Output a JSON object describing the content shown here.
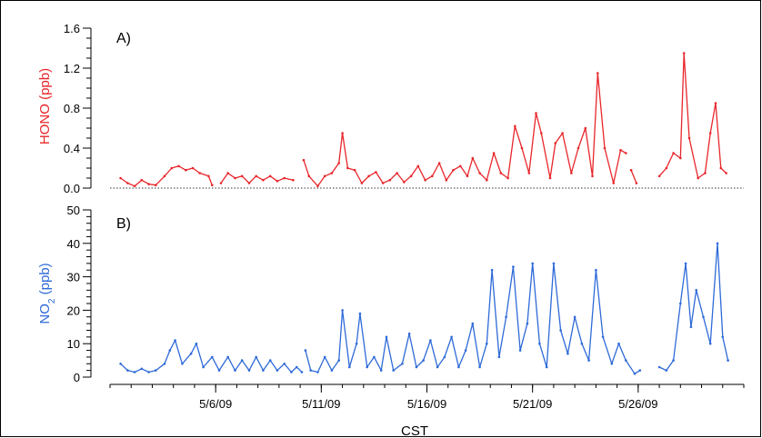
{
  "chart_data": [
    {
      "type": "line",
      "panel_label": "A)",
      "ylabel": "HONO (ppb)",
      "ylim": [
        0.0,
        1.6
      ],
      "yticks": [
        "0.0",
        "0.4",
        "0.8",
        "1.2",
        "1.6"
      ],
      "xlim": [
        "2009-05-01",
        "2009-05-31"
      ],
      "baseline_y": 0,
      "color": "#e8262b",
      "series": [
        {
          "segments": [
            [
              [
                "05-01 12:00",
                0.1
              ],
              [
                "05-01 20:00",
                0.05
              ],
              [
                "05-02 04:00",
                0.02
              ],
              [
                "05-02 12:00",
                0.08
              ],
              [
                "05-02 20:00",
                0.04
              ],
              [
                "05-03 04:00",
                0.03
              ],
              [
                "05-03 14:00",
                0.12
              ],
              [
                "05-03 22:00",
                0.2
              ],
              [
                "05-04 06:00",
                0.22
              ],
              [
                "05-04 14:00",
                0.18
              ],
              [
                "05-04 22:00",
                0.2
              ],
              [
                "05-05 06:00",
                0.15
              ],
              [
                "05-05 16:00",
                0.12
              ],
              [
                "05-05 20:00",
                0.03
              ]
            ],
            [
              [
                "05-06 06:00",
                0.05
              ],
              [
                "05-06 14:00",
                0.15
              ],
              [
                "05-06 22:00",
                0.1
              ],
              [
                "05-07 06:00",
                0.12
              ],
              [
                "05-07 14:00",
                0.05
              ],
              [
                "05-07 22:00",
                0.12
              ],
              [
                "05-08 06:00",
                0.08
              ],
              [
                "05-08 14:00",
                0.12
              ],
              [
                "05-08 22:00",
                0.07
              ],
              [
                "05-09 06:00",
                0.1
              ],
              [
                "05-09 16:00",
                0.08
              ]
            ],
            [
              [
                "05-10 04:00",
                0.28
              ],
              [
                "05-10 10:00",
                0.12
              ],
              [
                "05-10 20:00",
                0.02
              ],
              [
                "05-11 04:00",
                0.12
              ],
              [
                "05-11 12:00",
                0.15
              ],
              [
                "05-11 20:00",
                0.25
              ],
              [
                "05-12 00:00",
                0.55
              ],
              [
                "05-12 06:00",
                0.2
              ],
              [
                "05-12 14:00",
                0.18
              ],
              [
                "05-12 22:00",
                0.05
              ],
              [
                "05-13 06:00",
                0.12
              ],
              [
                "05-13 14:00",
                0.16
              ],
              [
                "05-13 22:00",
                0.05
              ],
              [
                "05-14 06:00",
                0.08
              ],
              [
                "05-14 14:00",
                0.15
              ],
              [
                "05-14 22:00",
                0.06
              ],
              [
                "05-15 06:00",
                0.12
              ],
              [
                "05-15 14:00",
                0.22
              ],
              [
                "05-15 22:00",
                0.08
              ],
              [
                "05-16 06:00",
                0.12
              ],
              [
                "05-16 14:00",
                0.25
              ],
              [
                "05-16 22:00",
                0.08
              ],
              [
                "05-17 06:00",
                0.18
              ],
              [
                "05-17 14:00",
                0.22
              ],
              [
                "05-17 22:00",
                0.12
              ],
              [
                "05-18 04:00",
                0.3
              ],
              [
                "05-18 12:00",
                0.15
              ],
              [
                "05-18 20:00",
                0.08
              ],
              [
                "05-19 04:00",
                0.35
              ],
              [
                "05-19 12:00",
                0.15
              ],
              [
                "05-19 20:00",
                0.1
              ],
              [
                "05-20 04:00",
                0.62
              ],
              [
                "05-20 12:00",
                0.4
              ],
              [
                "05-20 20:00",
                0.15
              ],
              [
                "05-21 04:00",
                0.75
              ],
              [
                "05-21 10:00",
                0.55
              ],
              [
                "05-21 20:00",
                0.1
              ],
              [
                "05-22 02:00",
                0.45
              ],
              [
                "05-22 10:00",
                0.55
              ],
              [
                "05-22 20:00",
                0.15
              ],
              [
                "05-23 04:00",
                0.4
              ],
              [
                "05-23 12:00",
                0.6
              ],
              [
                "05-23 20:00",
                0.12
              ],
              [
                "05-24 02:00",
                1.15
              ],
              [
                "05-24 10:00",
                0.4
              ],
              [
                "05-24 20:00",
                0.05
              ],
              [
                "05-25 04:00",
                0.38
              ],
              [
                "05-25 10:00",
                0.35
              ]
            ],
            [
              [
                "05-25 16:00",
                0.18
              ],
              [
                "05-25 22:00",
                0.05
              ]
            ],
            [
              [
                "05-27 00:00",
                0.12
              ],
              [
                "05-27 08:00",
                0.2
              ],
              [
                "05-27 16:00",
                0.35
              ],
              [
                "05-28 00:00",
                0.3
              ],
              [
                "05-28 04:00",
                1.35
              ],
              [
                "05-28 10:00",
                0.5
              ],
              [
                "05-28 20:00",
                0.1
              ],
              [
                "05-29 04:00",
                0.15
              ],
              [
                "05-29 10:00",
                0.55
              ],
              [
                "05-29 16:00",
                0.85
              ],
              [
                "05-29 22:00",
                0.2
              ],
              [
                "05-30 04:00",
                0.15
              ]
            ]
          ]
        }
      ]
    },
    {
      "type": "line",
      "panel_label": "B)",
      "ylabel": "NO2 (ppb)",
      "ylim": [
        0,
        50
      ],
      "yticks": [
        "0",
        "10",
        "20",
        "30",
        "40",
        "50"
      ],
      "xlim": [
        "2009-05-01",
        "2009-05-31"
      ],
      "xticks": [
        "5/6/09",
        "5/11/09",
        "5/16/09",
        "5/21/09",
        "5/26/09"
      ],
      "xlabel": "CST",
      "color": "#2e6ad8",
      "series": [
        {
          "segments": [
            [
              [
                "05-01 12:00",
                4
              ],
              [
                "05-01 20:00",
                2
              ],
              [
                "05-02 04:00",
                1.5
              ],
              [
                "05-02 12:00",
                2.5
              ],
              [
                "05-02 20:00",
                1.5
              ],
              [
                "05-03 04:00",
                2
              ],
              [
                "05-03 14:00",
                4
              ],
              [
                "05-03 20:00",
                8
              ],
              [
                "05-04 02:00",
                11
              ],
              [
                "05-04 10:00",
                4
              ],
              [
                "05-04 20:00",
                7
              ],
              [
                "05-05 02:00",
                10
              ],
              [
                "05-05 10:00",
                3
              ],
              [
                "05-05 20:00",
                6
              ],
              [
                "05-06 04:00",
                2
              ],
              [
                "05-06 14:00",
                6
              ],
              [
                "05-06 22:00",
                2
              ],
              [
                "05-07 06:00",
                5
              ],
              [
                "05-07 14:00",
                2
              ],
              [
                "05-07 22:00",
                6
              ],
              [
                "05-08 06:00",
                2
              ],
              [
                "05-08 14:00",
                5
              ],
              [
                "05-08 22:00",
                2
              ],
              [
                "05-09 06:00",
                4
              ],
              [
                "05-09 14:00",
                1.5
              ],
              [
                "05-09 20:00",
                3
              ],
              [
                "05-10 02:00",
                1.5
              ]
            ],
            [
              [
                "05-10 06:00",
                8
              ],
              [
                "05-10 12:00",
                2
              ],
              [
                "05-10 20:00",
                1.5
              ],
              [
                "05-11 04:00",
                6
              ],
              [
                "05-11 12:00",
                2
              ],
              [
                "05-11 20:00",
                5
              ],
              [
                "05-12 00:00",
                20
              ],
              [
                "05-12 08:00",
                3
              ],
              [
                "05-12 16:00",
                10
              ],
              [
                "05-12 20:00",
                19
              ],
              [
                "05-13 04:00",
                3
              ],
              [
                "05-13 12:00",
                6
              ],
              [
                "05-13 20:00",
                2
              ],
              [
                "05-14 02:00",
                12
              ],
              [
                "05-14 10:00",
                2
              ],
              [
                "05-14 20:00",
                4
              ],
              [
                "05-15 04:00",
                13
              ],
              [
                "05-15 12:00",
                3
              ],
              [
                "05-15 20:00",
                5
              ],
              [
                "05-16 04:00",
                11
              ],
              [
                "05-16 12:00",
                3
              ],
              [
                "05-16 20:00",
                6
              ],
              [
                "05-17 04:00",
                12
              ],
              [
                "05-17 12:00",
                3
              ],
              [
                "05-17 20:00",
                8
              ],
              [
                "05-18 04:00",
                16
              ],
              [
                "05-18 12:00",
                3
              ],
              [
                "05-18 20:00",
                10
              ],
              [
                "05-19 02:00",
                32
              ],
              [
                "05-19 10:00",
                6
              ],
              [
                "05-19 18:00",
                18
              ],
              [
                "05-20 02:00",
                33
              ],
              [
                "05-20 10:00",
                8
              ],
              [
                "05-20 18:00",
                16
              ],
              [
                "05-21 00:00",
                34
              ],
              [
                "05-21 08:00",
                10
              ],
              [
                "05-21 16:00",
                3
              ],
              [
                "05-22 00:00",
                34
              ],
              [
                "05-22 08:00",
                14
              ],
              [
                "05-22 16:00",
                7
              ],
              [
                "05-23 00:00",
                18
              ],
              [
                "05-23 08:00",
                10
              ],
              [
                "05-23 16:00",
                5
              ],
              [
                "05-24 00:00",
                32
              ],
              [
                "05-24 08:00",
                12
              ],
              [
                "05-24 18:00",
                4
              ],
              [
                "05-25 02:00",
                10
              ],
              [
                "05-25 10:00",
                5
              ],
              [
                "05-25 20:00",
                1
              ],
              [
                "05-26 02:00",
                2
              ]
            ],
            [
              [
                "05-27 00:00",
                3
              ],
              [
                "05-27 08:00",
                2
              ],
              [
                "05-27 16:00",
                5
              ],
              [
                "05-28 00:00",
                22
              ],
              [
                "05-28 06:00",
                34
              ],
              [
                "05-28 12:00",
                15
              ],
              [
                "05-28 18:00",
                26
              ],
              [
                "05-29 02:00",
                18
              ],
              [
                "05-29 10:00",
                10
              ],
              [
                "05-29 18:00",
                40
              ],
              [
                "05-30 00:00",
                12
              ],
              [
                "05-30 06:00",
                5
              ]
            ]
          ]
        }
      ]
    }
  ]
}
